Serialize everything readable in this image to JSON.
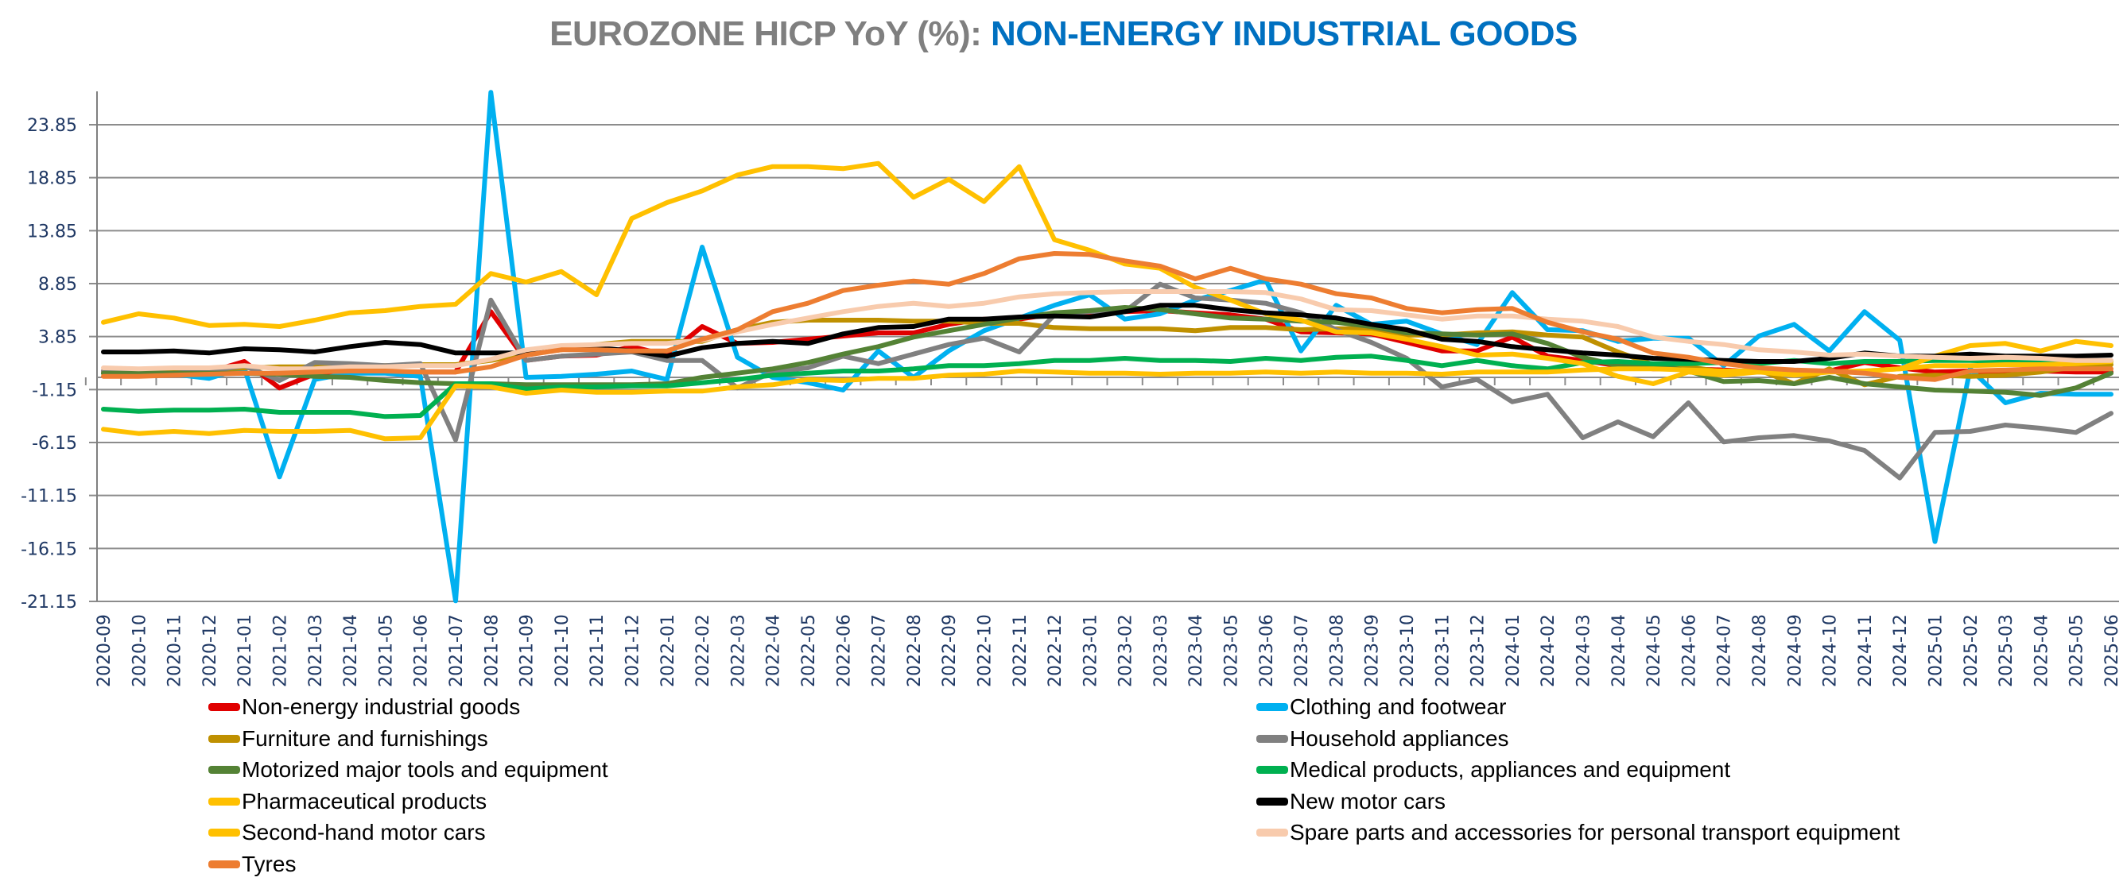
{
  "title": {
    "part1": "EUROZONE HICP YoY (%): ",
    "part2": "NON-ENERGY INDUSTRIAL GOODS",
    "part1_color": "#7f7f7f",
    "part2_color": "#0070c0"
  },
  "chart_data": {
    "type": "line",
    "title": "EUROZONE HICP YoY (%): NON-ENERGY INDUSTRIAL GOODS",
    "xlabel": "",
    "ylabel": "",
    "ylim": [
      -21.15,
      27.0
    ],
    "yticks": [
      "23.85",
      "18.85",
      "13.85",
      "8.85",
      "3.85",
      "-1.15",
      "-6.15",
      "-11.15",
      "-16.15",
      "-21.15"
    ],
    "ytick_values": [
      23.85,
      18.85,
      13.85,
      8.85,
      3.85,
      -1.15,
      -6.15,
      -11.15,
      -16.15,
      -21.15
    ],
    "grid": true,
    "legend_position": "bottom",
    "x": [
      "2020-09",
      "2020-10",
      "2020-11",
      "2020-12",
      "2021-01",
      "2021-02",
      "2021-03",
      "2021-04",
      "2021-05",
      "2021-06",
      "2021-07",
      "2021-08",
      "2021-09",
      "2021-10",
      "2021-11",
      "2021-12",
      "2022-01",
      "2022-02",
      "2022-03",
      "2022-04",
      "2022-05",
      "2022-06",
      "2022-07",
      "2022-08",
      "2022-09",
      "2022-10",
      "2022-11",
      "2022-12",
      "2023-01",
      "2023-02",
      "2023-03",
      "2023-04",
      "2023-05",
      "2023-06",
      "2023-07",
      "2023-08",
      "2023-09",
      "2023-10",
      "2023-11",
      "2023-12",
      "2024-01",
      "2024-02",
      "2024-03",
      "2024-04",
      "2024-05",
      "2024-06",
      "2024-07",
      "2024-08",
      "2024-09",
      "2024-10",
      "2024-11",
      "2024-12",
      "2025-01",
      "2025-02",
      "2025-03",
      "2025-04",
      "2025-05",
      "2025-06"
    ],
    "series": [
      {
        "name": "Non-energy industrial goods",
        "color": "#e00000",
        "values": [
          0.6,
          0.5,
          0.5,
          0.5,
          1.5,
          -1.0,
          0.3,
          0.4,
          0.5,
          0.5,
          0.5,
          6.2,
          1.6,
          2.0,
          2.1,
          2.9,
          2.1,
          4.8,
          3.2,
          3.3,
          3.6,
          3.9,
          4.2,
          4.2,
          5.0,
          5.5,
          5.5,
          6.0,
          6.1,
          6.2,
          6.3,
          6.1,
          5.9,
          5.5,
          4.3,
          4.2,
          4.1,
          3.3,
          2.5,
          2.5,
          3.8,
          2.0,
          1.6,
          1.1,
          0.8,
          0.8,
          0.7,
          0.5,
          0.5,
          0.6,
          1.4,
          0.9,
          0.5,
          0.6,
          0.4,
          0.6,
          0.5,
          0.5
        ]
      },
      {
        "name": "Clothing and footwear",
        "color": "#00b0f0",
        "values": [
          0.4,
          0.4,
          0.3,
          -0.1,
          0.9,
          -9.4,
          -0.2,
          0.4,
          0.4,
          0.1,
          -21.1,
          26.9,
          0.0,
          0.1,
          0.3,
          0.6,
          -0.2,
          12.3,
          1.9,
          0.0,
          -0.5,
          -1.2,
          2.5,
          0.0,
          2.5,
          4.4,
          5.6,
          6.8,
          7.8,
          5.5,
          6.0,
          7.3,
          8.2,
          9.2,
          2.5,
          6.8,
          5.0,
          5.3,
          4.1,
          3.1,
          8.0,
          4.5,
          4.4,
          3.4,
          3.7,
          3.7,
          1.1,
          3.9,
          5.0,
          2.5,
          6.2,
          3.5,
          -15.5,
          0.8,
          -2.4,
          -1.5,
          -1.6,
          -1.6
        ]
      },
      {
        "name": "Furniture and furnishings",
        "color": "#bf9000",
        "values": [
          0.4,
          0.5,
          0.6,
          0.7,
          0.9,
          1.0,
          1.0,
          1.1,
          1.1,
          1.2,
          1.2,
          1.6,
          2.2,
          2.6,
          3.1,
          3.4,
          3.4,
          3.4,
          4.5,
          5.2,
          5.4,
          5.4,
          5.4,
          5.3,
          5.3,
          5.1,
          5.1,
          4.7,
          4.6,
          4.6,
          4.6,
          4.4,
          4.7,
          4.7,
          4.5,
          4.6,
          4.6,
          4.0,
          4.0,
          4.2,
          4.3,
          4.0,
          3.8,
          2.4,
          1.2,
          1.0,
          0.5,
          0.7,
          -0.6,
          0.8,
          -0.7,
          0.1,
          0.2,
          0.1,
          0.2,
          0.5,
          1.0,
          1.2
        ]
      },
      {
        "name": "Household appliances",
        "color": "#808080",
        "values": [
          0.6,
          0.4,
          0.4,
          0.6,
          1.1,
          -0.3,
          1.4,
          1.3,
          1.1,
          1.3,
          -5.9,
          7.3,
          1.6,
          2.0,
          2.2,
          2.4,
          1.6,
          1.6,
          -1.0,
          0.5,
          0.9,
          2.0,
          1.3,
          2.2,
          3.1,
          3.7,
          2.4,
          5.9,
          6.2,
          6.2,
          8.8,
          7.5,
          7.3,
          7.0,
          6.1,
          4.5,
          3.3,
          1.8,
          -0.9,
          -0.2,
          -2.3,
          -1.6,
          -5.7,
          -4.2,
          -5.6,
          -2.4,
          -6.1,
          -5.7,
          -5.5,
          -6.0,
          -6.9,
          -9.5,
          -5.2,
          -5.1,
          -4.5,
          -4.8,
          -5.2,
          -3.4
        ]
      },
      {
        "name": "Motorized major tools and equipment",
        "color": "#548235",
        "values": [
          0.4,
          0.4,
          0.4,
          0.4,
          0.4,
          0.3,
          0.1,
          0.0,
          -0.3,
          -0.5,
          -0.6,
          -0.6,
          -0.7,
          -0.7,
          -0.7,
          -0.7,
          -0.6,
          0.0,
          0.4,
          0.8,
          1.4,
          2.2,
          2.9,
          3.8,
          4.4,
          5.0,
          5.6,
          6.1,
          6.3,
          6.6,
          6.4,
          6.0,
          5.6,
          5.5,
          5.3,
          5.2,
          4.8,
          4.2,
          4.1,
          4.0,
          4.1,
          3.2,
          1.9,
          1.1,
          1.2,
          0.6,
          -0.4,
          -0.3,
          -0.6,
          0.0,
          -0.6,
          -0.9,
          -1.2,
          -1.3,
          -1.4,
          -1.7,
          -1.0,
          0.4
        ]
      },
      {
        "name": "Medical products, appliances and equipment",
        "color": "#00b050",
        "values": [
          -3.0,
          -3.2,
          -3.1,
          -3.1,
          -3.0,
          -3.3,
          -3.3,
          -3.3,
          -3.7,
          -3.6,
          -0.6,
          -0.6,
          -1.1,
          -0.9,
          -0.9,
          -0.8,
          -0.8,
          -0.5,
          -0.2,
          0.2,
          0.4,
          0.6,
          0.6,
          0.8,
          1.1,
          1.1,
          1.3,
          1.6,
          1.6,
          1.8,
          1.6,
          1.6,
          1.5,
          1.8,
          1.6,
          1.9,
          2.0,
          1.6,
          1.1,
          1.6,
          1.1,
          0.8,
          1.4,
          1.5,
          1.3,
          1.3,
          1.4,
          1.3,
          1.6,
          1.3,
          1.5,
          1.5,
          1.6,
          1.6,
          1.5,
          1.5,
          1.5,
          1.5
        ]
      },
      {
        "name": "Pharmaceutical products",
        "color": "#ffc000",
        "values": [
          5.2,
          6.0,
          5.6,
          4.9,
          5.0,
          4.8,
          5.4,
          6.1,
          6.3,
          6.7,
          6.9,
          9.8,
          9.0,
          10.0,
          7.8,
          15.0,
          16.5,
          17.6,
          19.1,
          19.9,
          19.9,
          19.7,
          20.2,
          17.0,
          18.7,
          16.6,
          19.9,
          13.0,
          12.0,
          10.7,
          10.3,
          8.5,
          7.3,
          6.0,
          5.4,
          4.3,
          4.2,
          3.6,
          2.9,
          2.1,
          2.2,
          1.8,
          1.3,
          0.1,
          -0.6,
          0.5,
          0.2,
          0.5,
          0.2,
          0.5,
          0.6,
          0.8,
          2.0,
          3.0,
          3.2,
          2.5,
          3.4,
          3.0
        ]
      },
      {
        "name": "New motor cars",
        "color": "#000000",
        "values": [
          2.4,
          2.4,
          2.5,
          2.3,
          2.7,
          2.6,
          2.4,
          2.9,
          3.3,
          3.1,
          2.3,
          2.3,
          2.3,
          2.7,
          2.8,
          2.5,
          2.0,
          2.8,
          3.2,
          3.4,
          3.2,
          4.1,
          4.7,
          4.8,
          5.5,
          5.5,
          5.7,
          5.8,
          5.7,
          6.2,
          6.8,
          6.8,
          6.4,
          6.1,
          5.9,
          5.6,
          5.0,
          4.5,
          3.6,
          3.4,
          2.9,
          2.6,
          2.3,
          2.1,
          1.8,
          1.7,
          1.6,
          1.5,
          1.5,
          1.8,
          2.3,
          2.0,
          2.0,
          2.2,
          2.0,
          2.0,
          2.0,
          2.1
        ]
      },
      {
        "name": "Second-hand motor cars",
        "color": "#ffc000",
        "values": [
          -4.9,
          -5.3,
          -5.1,
          -5.3,
          -5.0,
          -5.1,
          -5.1,
          -5.0,
          -5.8,
          -5.7,
          -0.8,
          -0.9,
          -1.5,
          -1.2,
          -1.4,
          -1.4,
          -1.3,
          -1.3,
          -0.9,
          -0.7,
          -0.2,
          -0.3,
          -0.1,
          -0.1,
          0.2,
          0.3,
          0.6,
          0.5,
          0.4,
          0.4,
          0.3,
          0.4,
          0.4,
          0.5,
          0.4,
          0.5,
          0.4,
          0.4,
          0.3,
          0.5,
          0.5,
          0.5,
          0.7,
          0.8,
          0.8,
          0.7,
          0.6,
          0.6,
          0.5,
          0.5,
          0.6,
          0.8,
          1.1,
          1.1,
          1.2,
          1.2,
          1.3,
          1.5
        ]
      },
      {
        "name": "Spare parts and accessories for personal transport equipment",
        "color": "#f8cbad",
        "values": [
          0.9,
          0.8,
          0.9,
          0.9,
          1.1,
          0.8,
          0.8,
          1.0,
          1.0,
          1.1,
          1.1,
          1.7,
          2.6,
          3.0,
          3.1,
          3.2,
          3.2,
          3.5,
          4.3,
          5.0,
          5.6,
          6.2,
          6.7,
          7.0,
          6.7,
          7.0,
          7.6,
          7.9,
          8.0,
          8.1,
          8.1,
          8.1,
          8.1,
          8.0,
          7.4,
          6.4,
          6.3,
          5.9,
          5.5,
          5.8,
          5.8,
          5.5,
          5.3,
          4.8,
          3.8,
          3.4,
          3.1,
          2.6,
          2.4,
          2.1,
          2.2,
          2.0,
          1.9,
          1.8,
          1.9,
          1.8,
          1.6,
          1.6
        ]
      },
      {
        "name": "Tyres",
        "color": "#ed7d31",
        "values": [
          0.1,
          0.1,
          0.2,
          0.3,
          0.4,
          0.4,
          0.5,
          0.6,
          0.6,
          0.5,
          0.5,
          1.0,
          2.1,
          2.6,
          2.6,
          2.5,
          2.5,
          3.6,
          4.5,
          6.2,
          7.0,
          8.2,
          8.7,
          9.1,
          8.8,
          9.8,
          11.2,
          11.7,
          11.6,
          11.0,
          10.5,
          9.3,
          10.3,
          9.3,
          8.8,
          7.9,
          7.5,
          6.5,
          6.1,
          6.4,
          6.5,
          5.2,
          4.3,
          3.6,
          2.3,
          1.9,
          1.3,
          0.9,
          0.7,
          0.6,
          0.4,
          0.0,
          -0.2,
          0.6,
          0.7,
          0.8,
          0.8,
          0.8
        ]
      }
    ]
  },
  "legend": {
    "items": [
      {
        "label": "Non-energy industrial goods",
        "color": "#e00000"
      },
      {
        "label": "Clothing and footwear",
        "color": "#00b0f0"
      },
      {
        "label": "Furniture and furnishings",
        "color": "#bf9000"
      },
      {
        "label": "Household appliances",
        "color": "#808080"
      },
      {
        "label": "Motorized major tools and equipment",
        "color": "#548235"
      },
      {
        "label": "Medical products, appliances and equipment",
        "color": "#00b050"
      },
      {
        "label": "Pharmaceutical products",
        "color": "#ffc000"
      },
      {
        "label": "New motor cars",
        "color": "#000000"
      },
      {
        "label": "Second-hand motor cars",
        "color": "#ffc000"
      },
      {
        "label": "Spare parts and accessories for personal transport equipment",
        "color": "#f8cbad"
      },
      {
        "label": "Tyres",
        "color": "#ed7d31"
      }
    ]
  }
}
